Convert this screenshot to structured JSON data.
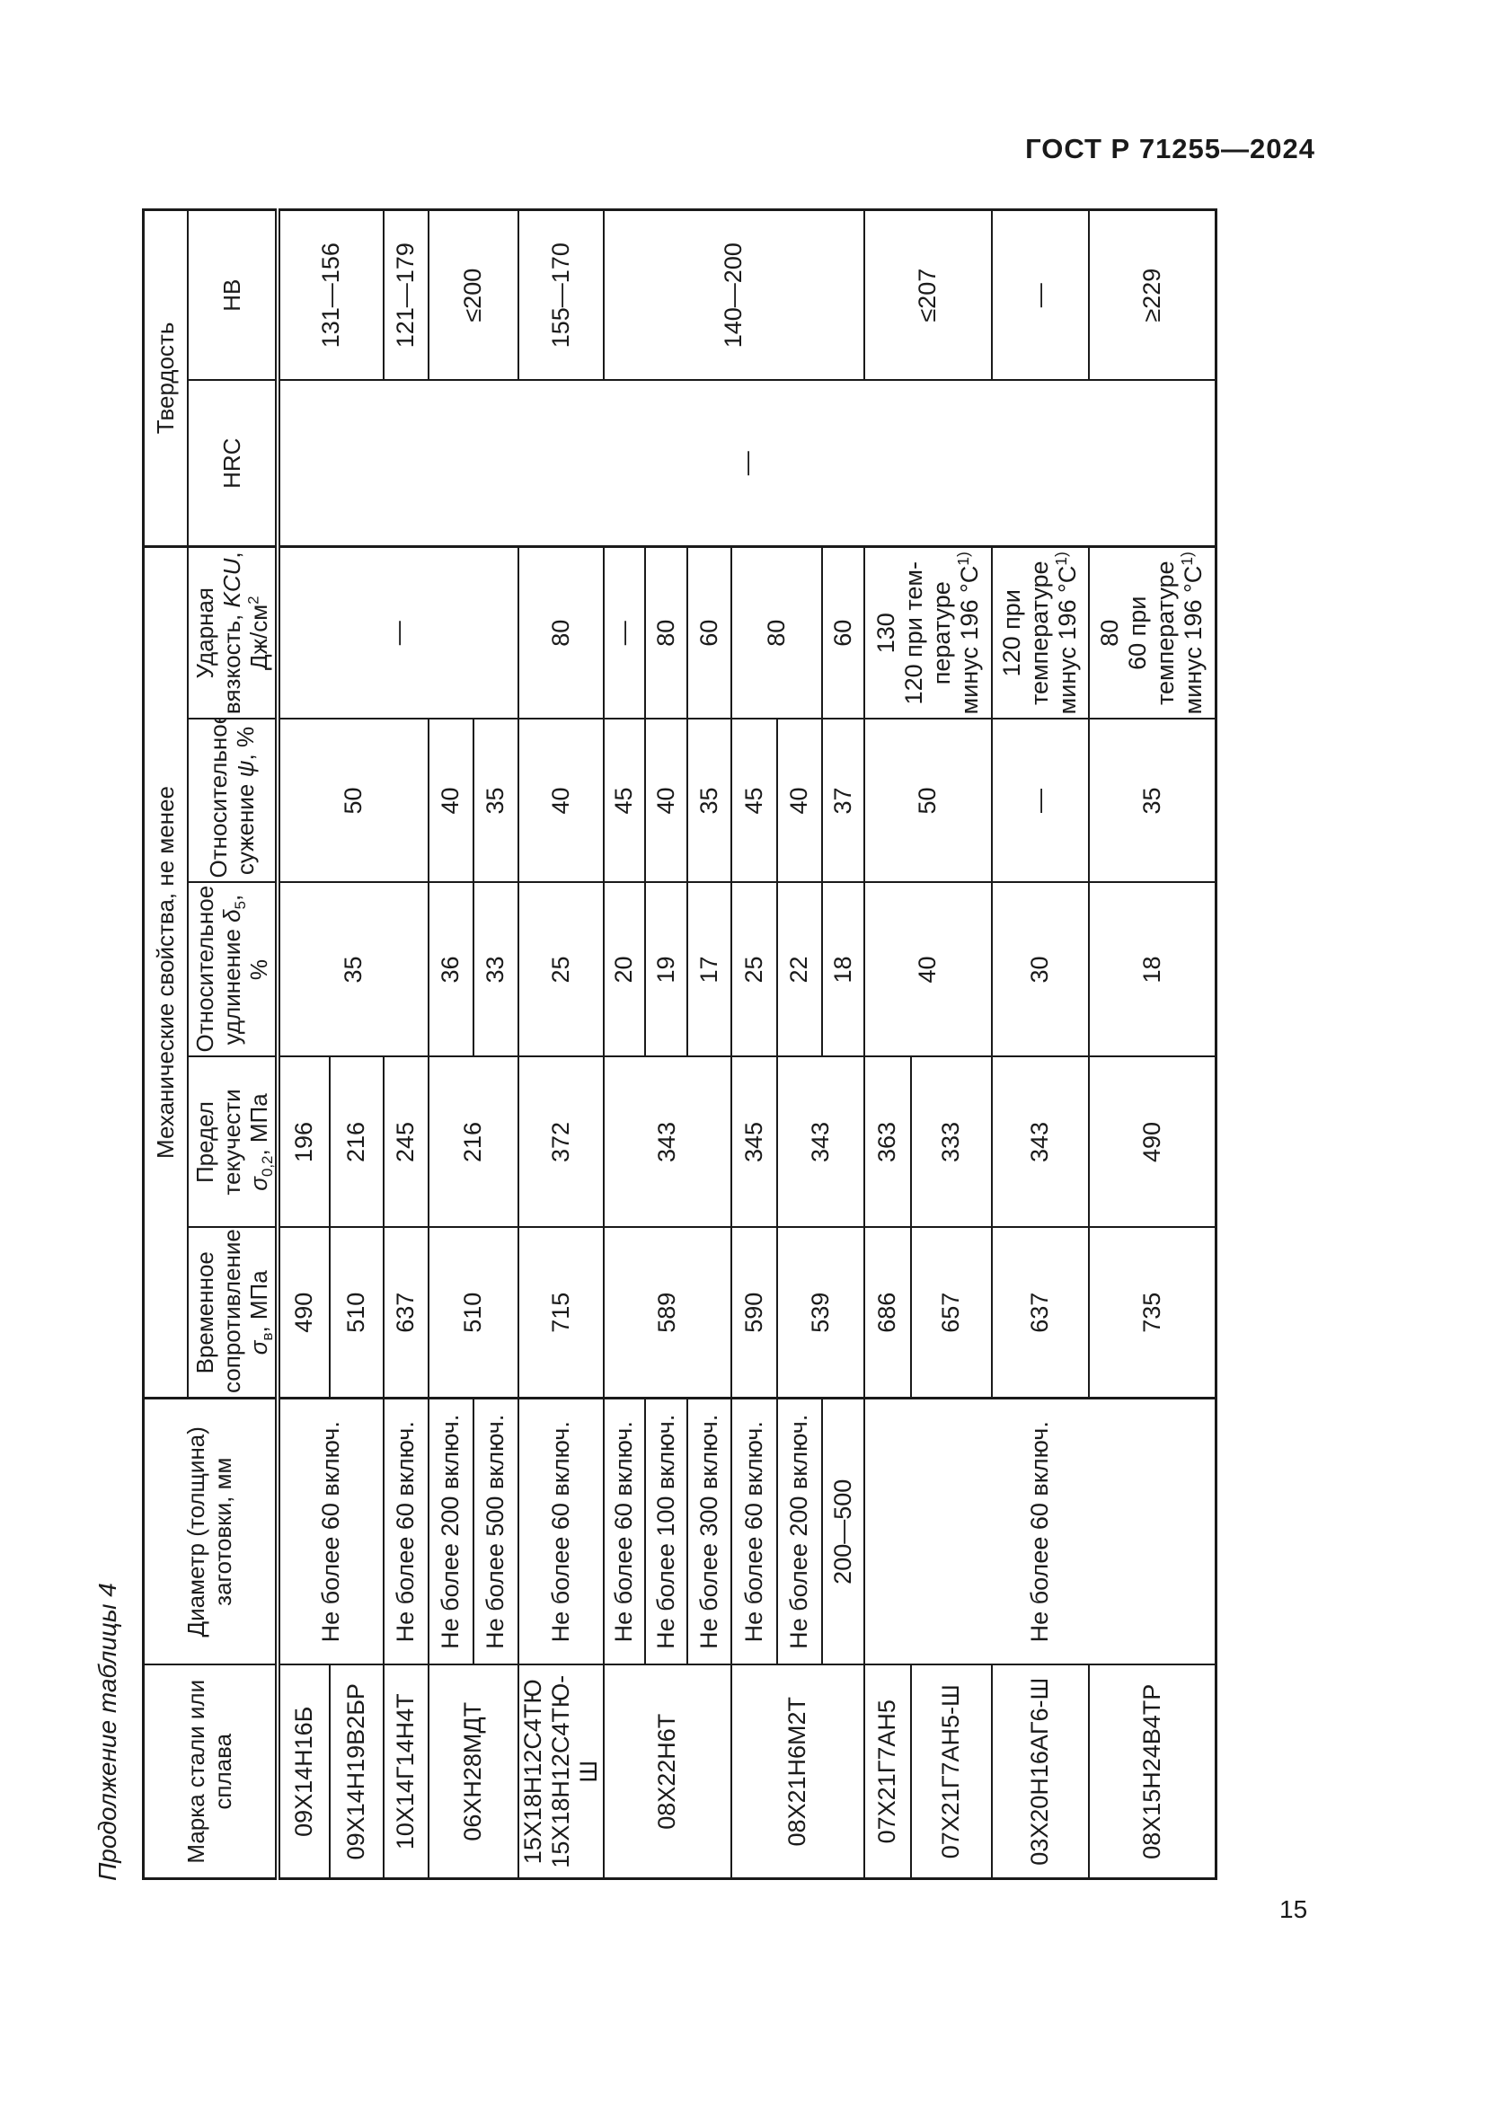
{
  "page": {
    "standard_ref": "ГОСТ Р 71255—2024",
    "table_caption": "Продолжение таблицы 4",
    "page_number": "15"
  },
  "table": {
    "header": {
      "marka_lines": [
        "Марка стали или",
        "сплава"
      ],
      "diameter_lines": [
        "Диаметр (толщина)",
        "заготовки, мм"
      ],
      "mech_group": "Механические свойства, не менее",
      "hardness_group": "Твердость",
      "col_labels": [
        [
          "Временное",
          "сопротивление",
          "~{σ}_{в}, МПа"
        ],
        [
          "Предел",
          "текучести",
          "~{σ}_{0,2}, МПа"
        ],
        [
          "Относительное",
          "удлинение ~{δ}_{5}, %"
        ],
        [
          "Относительное",
          "сужение ~{ψ}, %"
        ],
        [
          "Ударная",
          "вязкость, ~{KCU},",
          "Дж/см^{2}"
        ],
        [
          "HRC"
        ],
        [
          "НВ"
        ]
      ]
    },
    "rows": [
      {
        "cells": [
          {
            "c": 0,
            "t": "09Х14Н16Б"
          },
          {
            "c": 1,
            "t": "Не более 60 включ.",
            "rs": 2
          },
          {
            "c": 2,
            "t": "490"
          },
          {
            "c": 3,
            "t": "196"
          },
          {
            "c": 4,
            "t": "35",
            "rs": 3
          },
          {
            "c": 5,
            "t": "50",
            "rs": 3
          },
          {
            "c": 6,
            "t": "—",
            "rs": 5
          },
          {
            "c": 7,
            "t": "—",
            "rs": 16
          },
          {
            "c": 8,
            "t": "131—156",
            "rs": 2
          }
        ]
      },
      {
        "cells": [
          {
            "c": 0,
            "t": "09Х14Н19В2БР"
          },
          {
            "c": 2,
            "t": "510"
          },
          {
            "c": 3,
            "t": "216"
          }
        ]
      },
      {
        "cells": [
          {
            "c": 0,
            "t": "10Х14Г14Н4Т"
          },
          {
            "c": 1,
            "t": "Не более 60 включ."
          },
          {
            "c": 2,
            "t": "637"
          },
          {
            "c": 3,
            "t": "245"
          },
          {
            "c": 8,
            "t": "121—179"
          }
        ]
      },
      {
        "cells": [
          {
            "c": 0,
            "t": "06ХН28МДТ",
            "rs": 2
          },
          {
            "c": 1,
            "t": "Не более 200 включ."
          },
          {
            "c": 2,
            "t": "510",
            "rs": 2
          },
          {
            "c": 3,
            "t": "216",
            "rs": 2
          },
          {
            "c": 4,
            "t": "36"
          },
          {
            "c": 5,
            "t": "40"
          },
          {
            "c": 8,
            "t": "≤200",
            "rs": 2
          }
        ]
      },
      {
        "cells": [
          {
            "c": 1,
            "t": "Не более 500 включ."
          },
          {
            "c": 4,
            "t": "33"
          },
          {
            "c": 5,
            "t": "35"
          }
        ]
      },
      {
        "cells": [
          {
            "c": 0,
            "lines": [
              "15Х18Н12С4ТЮ",
              "15Х18Н12С4ТЮ-Ш"
            ]
          },
          {
            "c": 1,
            "t": "Не более 60 включ."
          },
          {
            "c": 2,
            "t": "715"
          },
          {
            "c": 3,
            "t": "372"
          },
          {
            "c": 4,
            "t": "25"
          },
          {
            "c": 5,
            "t": "40"
          },
          {
            "c": 6,
            "t": "80"
          },
          {
            "c": 8,
            "t": "155—170"
          }
        ]
      },
      {
        "cells": [
          {
            "c": 0,
            "t": "08Х22Н6Т",
            "rs": 3
          },
          {
            "c": 1,
            "t": "Не более 60 включ."
          },
          {
            "c": 2,
            "t": "589",
            "rs": 3
          },
          {
            "c": 3,
            "t": "343",
            "rs": 3
          },
          {
            "c": 4,
            "t": "20"
          },
          {
            "c": 5,
            "t": "45"
          },
          {
            "c": 6,
            "t": "—"
          },
          {
            "c": 8,
            "t": "140—200",
            "rs": 6
          }
        ]
      },
      {
        "cells": [
          {
            "c": 1,
            "t": "Не более 100 включ."
          },
          {
            "c": 4,
            "t": "19"
          },
          {
            "c": 5,
            "t": "40"
          },
          {
            "c": 6,
            "t": "80"
          }
        ]
      },
      {
        "cells": [
          {
            "c": 1,
            "t": "Не более 300 включ."
          },
          {
            "c": 4,
            "t": "17"
          },
          {
            "c": 5,
            "t": "35"
          },
          {
            "c": 6,
            "t": "60"
          }
        ]
      },
      {
        "cells": [
          {
            "c": 0,
            "t": "08Х21Н6М2Т",
            "rs": 3
          },
          {
            "c": 1,
            "t": "Не более 60 включ."
          },
          {
            "c": 2,
            "t": "590"
          },
          {
            "c": 3,
            "t": "345"
          },
          {
            "c": 4,
            "t": "25"
          },
          {
            "c": 5,
            "t": "45"
          },
          {
            "c": 6,
            "t": "80",
            "rs": 2
          }
        ]
      },
      {
        "cells": [
          {
            "c": 1,
            "t": "Не более 200 включ."
          },
          {
            "c": 2,
            "t": "539",
            "rs": 2
          },
          {
            "c": 3,
            "t": "343",
            "rs": 2
          },
          {
            "c": 4,
            "t": "22"
          },
          {
            "c": 5,
            "t": "40"
          }
        ]
      },
      {
        "cells": [
          {
            "c": 1,
            "t": "200—500"
          },
          {
            "c": 4,
            "t": "18"
          },
          {
            "c": 5,
            "t": "37"
          },
          {
            "c": 6,
            "t": "60"
          }
        ]
      },
      {
        "cells": [
          {
            "c": 0,
            "t": "07Х21Г7АН5"
          },
          {
            "c": 1,
            "t": "Не более 60 включ.",
            "rs": 4
          },
          {
            "c": 2,
            "t": "686"
          },
          {
            "c": 3,
            "t": "363"
          },
          {
            "c": 4,
            "t": "40",
            "rs": 2
          },
          {
            "c": 5,
            "t": "50",
            "rs": 2
          },
          {
            "c": 6,
            "lines": [
              "130",
              "120 при тем-",
              "пературе",
              "минус 196 °С^{1)}"
            ],
            "rs": 2
          },
          {
            "c": 8,
            "t": "≤207",
            "rs": 2
          }
        ]
      },
      {
        "cells": [
          {
            "c": 0,
            "t": "07Х21Г7АН5-Ш"
          },
          {
            "c": 2,
            "t": "657"
          },
          {
            "c": 3,
            "t": "333"
          }
        ]
      },
      {
        "cells": [
          {
            "c": 0,
            "t": "03Х20Н16АГ6-Ш"
          },
          {
            "c": 2,
            "t": "637"
          },
          {
            "c": 3,
            "t": "343"
          },
          {
            "c": 4,
            "t": "30"
          },
          {
            "c": 5,
            "t": "—"
          },
          {
            "c": 6,
            "lines": [
              "120 при",
              "температуре",
              "минус 196 °С^{1)}"
            ]
          },
          {
            "c": 8,
            "t": "—"
          }
        ]
      },
      {
        "cells": [
          {
            "c": 0,
            "t": "08Х15Н24В4ТР"
          },
          {
            "c": 2,
            "t": "735"
          },
          {
            "c": 3,
            "t": "490"
          },
          {
            "c": 4,
            "t": "18"
          },
          {
            "c": 5,
            "t": "35"
          },
          {
            "c": 6,
            "lines": [
              "80",
              "60 при",
              "температуре",
              "минус 196 °С^{1)}"
            ]
          },
          {
            "c": 8,
            "t": "≥229"
          }
        ]
      }
    ]
  }
}
